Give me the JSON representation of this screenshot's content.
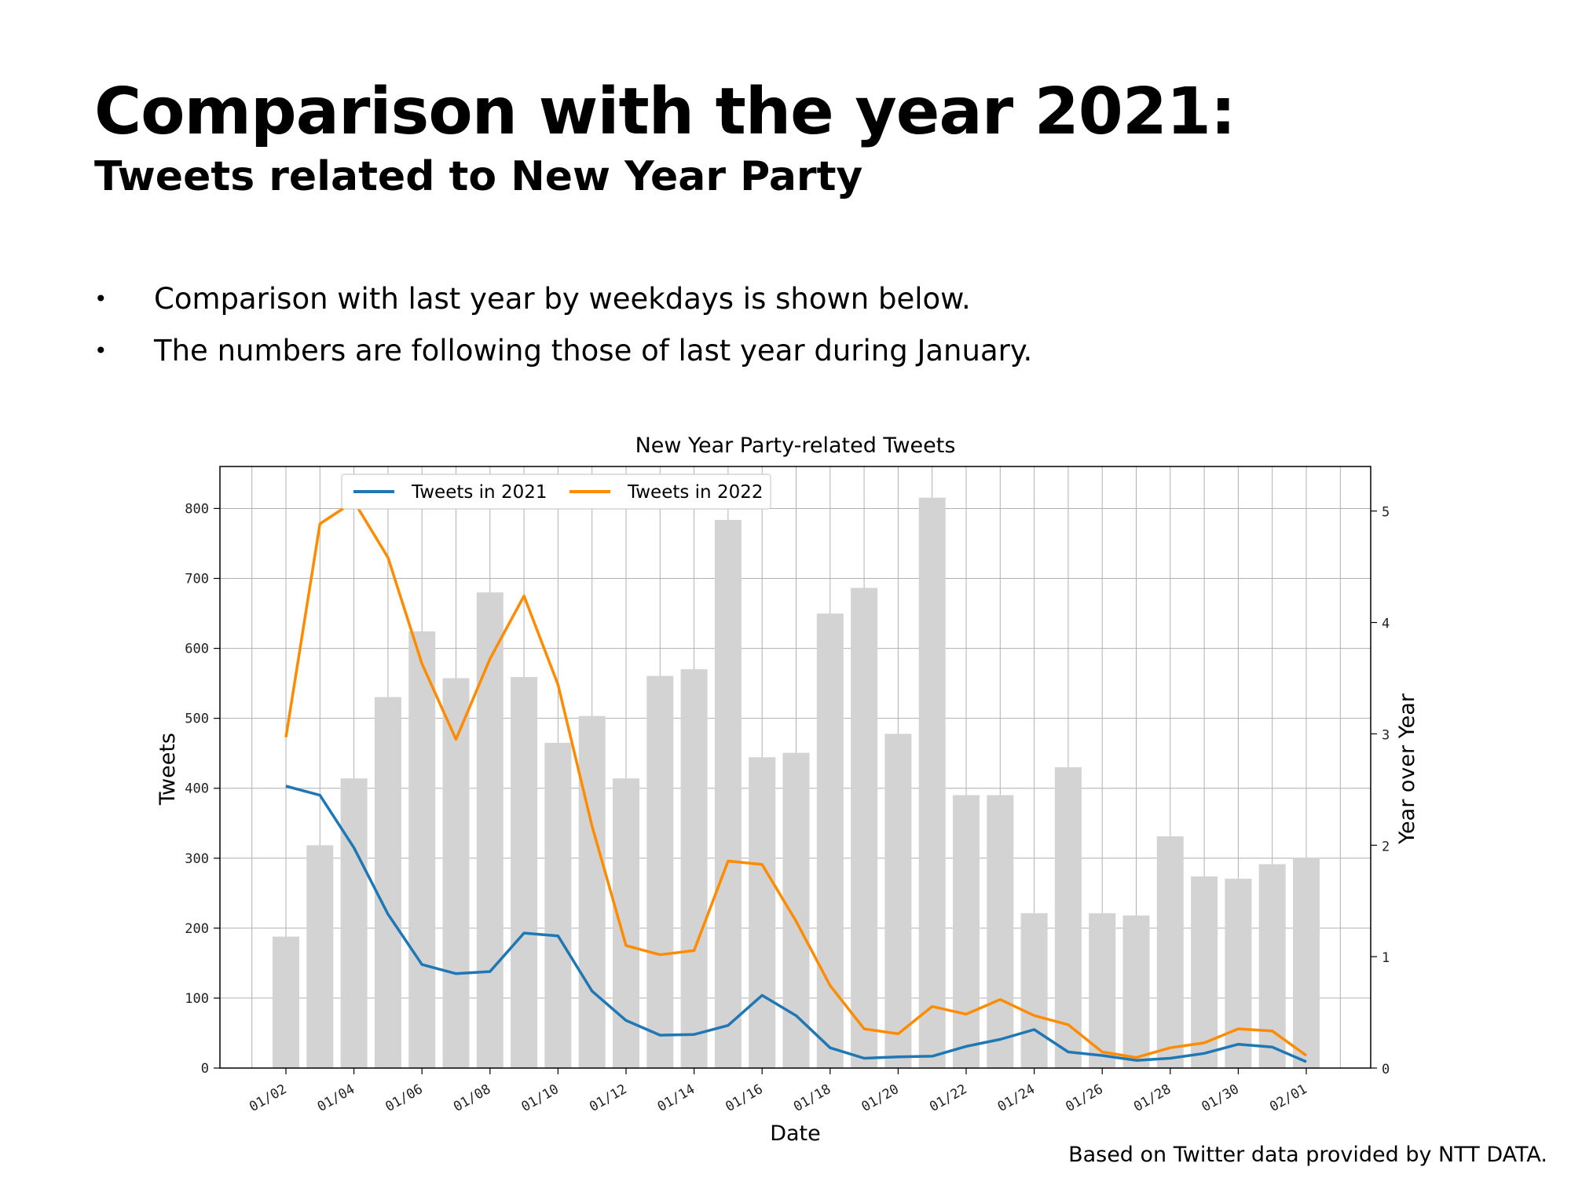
{
  "slide": {
    "title": "Comparison with the year 2021:",
    "subtitle": "Tweets related to New Year Party",
    "bullets": [
      "Comparison with last year by weekdays is shown below.",
      "The numbers are following those of last year during January."
    ],
    "credit": "Based on Twitter data provided by NTT DATA."
  },
  "colors": {
    "series_2021": "#1f77b4",
    "series_2022": "#ff8c00",
    "bars": "#d3d3d3",
    "grid": "#b0b0b0"
  },
  "chart_data": {
    "type": "bar",
    "title": "New Year Party-related Tweets",
    "xlabel": "Date",
    "ylabel": "Tweets",
    "y2label": "Year over Year",
    "ylim": [
      0,
      860
    ],
    "y2lim": [
      0,
      5.4
    ],
    "yticks": [
      "0",
      "100",
      "200",
      "300",
      "400",
      "500",
      "600",
      "700",
      "800"
    ],
    "y2ticks": [
      "0",
      "1",
      "2",
      "3",
      "4",
      "5"
    ],
    "xticks": [
      "01/02",
      "01/04",
      "01/06",
      "01/08",
      "01/10",
      "01/12",
      "01/14",
      "01/16",
      "01/18",
      "01/20",
      "01/22",
      "01/24",
      "01/26",
      "01/28",
      "01/30",
      "02/01"
    ],
    "grid": true,
    "legend_position": "top-left",
    "categories": [
      "01/02",
      "01/03",
      "01/04",
      "01/05",
      "01/06",
      "01/07",
      "01/08",
      "01/09",
      "01/10",
      "01/11",
      "01/12",
      "01/13",
      "01/14",
      "01/15",
      "01/16",
      "01/17",
      "01/18",
      "01/19",
      "01/20",
      "01/21",
      "01/22",
      "01/23",
      "01/24",
      "01/25",
      "01/26",
      "01/27",
      "01/28",
      "01/29",
      "01/30",
      "01/31",
      "02/01"
    ],
    "bars": {
      "axis": "right",
      "values": [
        1.18,
        2.0,
        2.6,
        3.33,
        3.92,
        3.5,
        4.27,
        3.51,
        2.92,
        3.16,
        2.6,
        3.52,
        3.58,
        4.92,
        2.79,
        2.83,
        4.08,
        4.31,
        3.0,
        5.12,
        2.45,
        2.45,
        1.39,
        2.7,
        1.39,
        1.37,
        2.08,
        1.72,
        1.7,
        1.83,
        1.89
      ]
    },
    "series": [
      {
        "name": "Tweets in 2021",
        "axis": "left",
        "values": [
          403,
          390,
          315,
          220,
          148,
          135,
          138,
          193,
          189,
          110,
          68,
          47,
          48,
          61,
          104,
          75,
          29,
          14,
          16,
          17,
          31,
          41,
          55,
          23,
          18,
          11,
          14,
          21,
          34,
          30,
          9
        ]
      },
      {
        "name": "Tweets in 2022",
        "axis": "left",
        "values": [
          473,
          778,
          810,
          730,
          578,
          470,
          585,
          675,
          548,
          346,
          175,
          162,
          168,
          296,
          291,
          210,
          118,
          56,
          49,
          88,
          77,
          98,
          75,
          62,
          23,
          15,
          29,
          36,
          56,
          53,
          18
        ]
      }
    ]
  }
}
